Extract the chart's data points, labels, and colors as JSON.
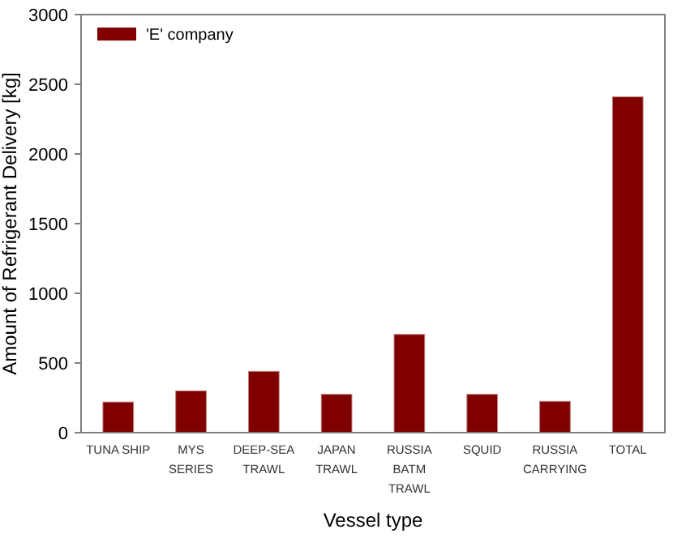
{
  "chart_data": {
    "type": "bar",
    "xlabel": "Vessel type",
    "ylabel": "Amount of Refrigerant Delivery [kg]",
    "categories": [
      "TUNA SHIP",
      "MYS\nSERIES",
      "DEEP-SEA\nTRAWL",
      "JAPAN\nTRAWL",
      "RUSSIA\nBATM\nTRAWL",
      "SQUID",
      "RUSSIA\nCARRYING",
      "TOTAL"
    ],
    "series": [
      {
        "name": "'E' company",
        "color": "#800000",
        "values": [
          220,
          300,
          440,
          275,
          705,
          275,
          225,
          2410
        ]
      }
    ],
    "ylim": [
      0,
      3000
    ],
    "yticks": [
      0,
      500,
      1000,
      1500,
      2000,
      2500,
      3000
    ],
    "legend": "top left"
  }
}
